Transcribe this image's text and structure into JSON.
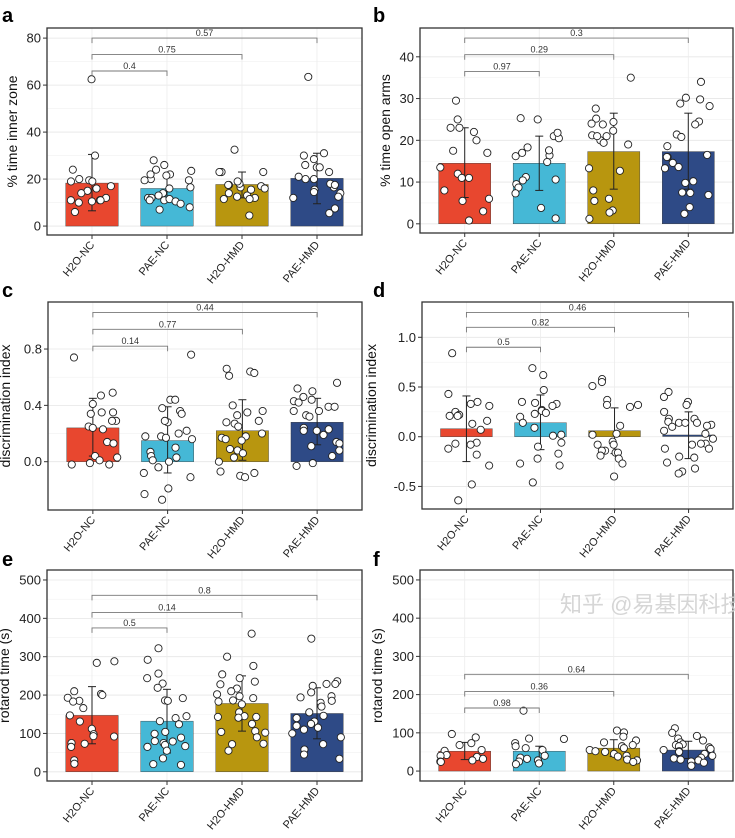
{
  "watermark": "知乎 @易基因科技",
  "categories": [
    "H2O-NC",
    "PAE-NC",
    "H2O-HMD",
    "PAE-HMD"
  ],
  "colors": {
    "H2O-NC": "#E8472F",
    "PAE-NC": "#45B8D6",
    "H2O-HMD": "#B8960F",
    "PAE-HMD": "#2E4A86"
  },
  "chart_data": [
    {
      "panel": "a",
      "type": "bar",
      "ylabel": "% time inner zone",
      "xlabel": "",
      "ylim": [
        -3.8,
        84.3
      ],
      "yticks": [
        0,
        20,
        40,
        60,
        80
      ],
      "ytick_labels": [
        "0",
        "20",
        "40",
        "60",
        "80"
      ],
      "grid": true,
      "means": [
        18.3,
        16,
        17.7,
        20.3
      ],
      "error_bars": [
        [
          6.5,
          30.5
        ],
        [
          11,
          21
        ],
        [
          12,
          23
        ],
        [
          9.5,
          31
        ]
      ],
      "points": [
        [
          62.5,
          30,
          24,
          20,
          19.5,
          19,
          19,
          17,
          16,
          15,
          14,
          12,
          11,
          11,
          10.5,
          10,
          11,
          6
        ],
        [
          22,
          21.5,
          20,
          19.5,
          19.5,
          16.5,
          12,
          11,
          8,
          12,
          14,
          11.5,
          10.5,
          24,
          22,
          23.5,
          26,
          28,
          16,
          13,
          11,
          9.5,
          7
        ],
        [
          32.5,
          23,
          23,
          17.5,
          17,
          16.5,
          14,
          13,
          12.5,
          12,
          11.5,
          11.5,
          17.5,
          18,
          23,
          23,
          19,
          15.5,
          4.5,
          16
        ],
        [
          63.5,
          28.5,
          25,
          20,
          16.5,
          15.5,
          14.5,
          26,
          30,
          23,
          21,
          20,
          18,
          17.5,
          14,
          12.5,
          7.5,
          5.5,
          31,
          25,
          12
        ]
      ],
      "comparisons": [
        {
          "groups": [
            "H2O-NC",
            "PAE-NC"
          ],
          "p": "0.4",
          "y": 66
        },
        {
          "groups": [
            "H2O-NC",
            "H2O-HMD"
          ],
          "p": "0.75",
          "y": 73
        },
        {
          "groups": [
            "H2O-NC",
            "PAE-HMD"
          ],
          "p": "0.57",
          "y": 80
        }
      ]
    },
    {
      "panel": "b",
      "type": "bar",
      "ylabel": "% time open arms",
      "xlabel": "",
      "ylim": [
        -2.2,
        46.9
      ],
      "yticks": [
        0,
        10,
        20,
        30,
        40
      ],
      "ytick_labels": [
        "0",
        "10",
        "20",
        "30",
        "40"
      ],
      "grid": true,
      "means": [
        14.5,
        14.5,
        17.3,
        17.3
      ],
      "error_bars": [
        [
          6.3,
          23
        ],
        [
          8,
          21
        ],
        [
          8.3,
          26.5
        ],
        [
          8.3,
          26.5
        ]
      ],
      "points": [
        [
          29.5,
          25,
          23,
          23,
          22,
          20,
          17.5,
          17,
          13.5,
          12,
          11,
          11,
          8,
          6,
          5.5,
          3,
          0.8
        ],
        [
          25,
          25.3,
          21,
          20.5,
          18.3,
          16.2,
          17,
          16.4,
          17.6,
          14.8,
          21.8,
          11.2,
          10.6,
          10.4,
          9.5,
          8.7,
          7.3,
          3.8,
          1.3
        ],
        [
          35,
          25.2,
          24.4,
          24,
          23.8,
          22.3,
          21.2,
          21,
          20,
          19.4,
          19,
          27.6,
          21,
          13.3,
          12.7,
          8,
          6,
          5.5,
          3.2,
          2.7,
          1.2
        ],
        [
          34,
          30.2,
          29.8,
          28.8,
          28.2,
          24.5,
          23.8,
          21.4,
          20.8,
          18.6,
          16.5,
          16,
          16,
          14.6,
          13.6,
          13.3,
          10.2,
          9.8,
          7.5,
          7.4,
          6.9,
          4,
          2.4
        ]
      ],
      "comparisons": [
        {
          "groups": [
            "H2O-NC",
            "PAE-NC"
          ],
          "p": "0.97",
          "y": 36.5
        },
        {
          "groups": [
            "H2O-NC",
            "H2O-HMD"
          ],
          "p": "0.29",
          "y": 40.5
        },
        {
          "groups": [
            "H2O-NC",
            "PAE-HMD"
          ],
          "p": "0.3",
          "y": 44.5
        }
      ]
    },
    {
      "panel": "c",
      "type": "bar",
      "ylabel": "discrimination index",
      "xlabel": "",
      "ylim": [
        -0.343,
        1.134
      ],
      "yticks": [
        0,
        0.4,
        0.8
      ],
      "ytick_labels": [
        "0.0",
        "0.4",
        "0.8"
      ],
      "grid": true,
      "means": [
        0.24,
        0.15,
        0.22,
        0.28
      ],
      "error_bars": [
        [
          0.04,
          0.45
        ],
        [
          -0.08,
          0.39
        ],
        [
          0.01,
          0.44
        ],
        [
          0.12,
          0.45
        ]
      ],
      "points": [
        [
          0.74,
          0.49,
          0.47,
          0.41,
          0.35,
          0.35,
          0.34,
          0.29,
          0.29,
          0.25,
          0.24,
          0.23,
          0.14,
          0.13,
          0.04,
          0.03,
          0.01,
          -0.02,
          -0.01,
          -0.02
        ],
        [
          0.76,
          0.44,
          0.44,
          0.38,
          0.36,
          0.34,
          0.28,
          0.29,
          0.22,
          0.2,
          0.18,
          0.18,
          0.17,
          0.16,
          0.1,
          0.07,
          0.03,
          0.04,
          0.01,
          0,
          -0.04,
          -0.08,
          -0.11,
          -0.19,
          -0.23,
          -0.27
        ],
        [
          0.66,
          0.64,
          0.61,
          0.63,
          0.4,
          0.36,
          0.35,
          0.33,
          0.29,
          0.28,
          0.27,
          0.25,
          0.2,
          0.18,
          0.17,
          0.16,
          0.15,
          0.09,
          0.08,
          0.06,
          0.03,
          0,
          -0.07,
          -0.08,
          -0.1,
          -0.11
        ],
        [
          0.56,
          0.52,
          0.5,
          0.46,
          0.44,
          0.43,
          0.42,
          0.39,
          0.39,
          0.36,
          0.36,
          0.33,
          0.32,
          0.24,
          0.23,
          0.22,
          0.22,
          0.19,
          0.14,
          0.13,
          0.11,
          0.08,
          0.04,
          -0.01,
          -0.03
        ]
      ],
      "comparisons": [
        {
          "groups": [
            "H2O-NC",
            "PAE-NC"
          ],
          "p": "0.14",
          "y": 0.82
        },
        {
          "groups": [
            "H2O-NC",
            "H2O-HMD"
          ],
          "p": "0.77",
          "y": 0.94
        },
        {
          "groups": [
            "H2O-NC",
            "PAE-HMD"
          ],
          "p": "0.44",
          "y": 1.06
        }
      ]
    },
    {
      "panel": "d",
      "type": "bar",
      "ylabel": "discrimination index",
      "xlabel": "",
      "ylim": [
        -0.727,
        1.355
      ],
      "yticks": [
        -0.5,
        0,
        0.5,
        1.0
      ],
      "ytick_labels": [
        "-0.5",
        "0.0",
        "0.5",
        "1.0"
      ],
      "grid": true,
      "means": [
        0.08,
        0.14,
        0.06,
        0.01
      ],
      "error_bars": [
        [
          -0.25,
          0.41
        ],
        [
          -0.13,
          0.42
        ],
        [
          -0.17,
          0.29
        ],
        [
          -0.22,
          0.25
        ]
      ],
      "points": [
        [
          0.84,
          0.43,
          0.35,
          0.33,
          0.31,
          0.25,
          0.22,
          0.21,
          0.21,
          0.16,
          0.13,
          0.07,
          -0.06,
          -0.07,
          -0.08,
          -0.12,
          -0.18,
          -0.29,
          -0.48,
          -0.64
        ],
        [
          0.69,
          0.62,
          0.47,
          0.35,
          0.34,
          0.33,
          0.31,
          0.27,
          0.26,
          0.24,
          0.23,
          0.2,
          0.14,
          0.09,
          0.02,
          0.01,
          -0.06,
          -0.1,
          -0.17,
          -0.22,
          -0.27,
          -0.29,
          -0.46
        ],
        [
          0.58,
          0.55,
          0.51,
          0.37,
          0.32,
          0.32,
          0.3,
          0.11,
          0.03,
          0.02,
          -0.05,
          -0.08,
          -0.08,
          -0.14,
          -0.14,
          -0.16,
          -0.16,
          -0.19,
          -0.22,
          -0.27,
          -0.4
        ],
        [
          0.45,
          0.4,
          0.35,
          0.32,
          0.25,
          0.18,
          0.18,
          0.15,
          0.14,
          0.14,
          0.14,
          0.12,
          0.11,
          0.1,
          0.06,
          0.03,
          -0.02,
          -0.07,
          -0.07,
          -0.08,
          -0.12,
          -0.12,
          -0.2,
          -0.21,
          -0.26,
          -0.32,
          -0.35,
          -0.37
        ]
      ],
      "comparisons": [
        {
          "groups": [
            "H2O-NC",
            "PAE-NC"
          ],
          "p": "0.5",
          "y": 0.9
        },
        {
          "groups": [
            "H2O-NC",
            "H2O-HMD"
          ],
          "p": "0.82",
          "y": 1.1
        },
        {
          "groups": [
            "H2O-NC",
            "PAE-HMD"
          ],
          "p": "0.46",
          "y": 1.25
        }
      ]
    },
    {
      "panel": "e",
      "type": "bar",
      "ylabel": "rotarod time (s)",
      "xlabel": "",
      "ylim": [
        -24,
        526
      ],
      "yticks": [
        0,
        100,
        200,
        300,
        400,
        500
      ],
      "ytick_labels": [
        "0",
        "100",
        "200",
        "300",
        "400",
        "500"
      ],
      "grid": true,
      "means": [
        147,
        132,
        178,
        152
      ],
      "error_bars": [
        [
          73,
          222
        ],
        [
          49,
          215
        ],
        [
          106,
          250
        ],
        [
          86,
          219
        ]
      ],
      "points": [
        [
          288,
          284,
          210,
          203,
          200,
          193,
          185,
          183,
          166,
          147,
          131,
          112,
          98,
          93,
          92,
          75,
          73,
          65,
          30,
          21
        ],
        [
          322,
          292,
          256,
          244,
          230,
          219,
          192,
          186,
          185,
          145,
          140,
          132,
          124,
          104,
          99,
          89,
          80,
          79,
          75,
          70,
          67,
          65,
          55,
          35,
          20,
          18
        ],
        [
          360,
          300,
          276,
          254,
          244,
          235,
          228,
          217,
          210,
          202,
          197,
          192,
          186,
          183,
          176,
          155,
          145,
          143,
          143,
          141,
          125,
          106,
          104,
          102,
          90,
          73,
          55,
          72
        ],
        [
          347,
          236,
          229,
          229,
          224,
          207,
          197,
          194,
          185,
          180,
          170,
          155,
          146,
          140,
          131,
          125,
          120,
          115,
          110,
          100,
          90,
          72,
          58,
          45,
          34
        ]
      ],
      "comparisons": [
        {
          "groups": [
            "H2O-NC",
            "PAE-NC"
          ],
          "p": "0.5",
          "y": 375
        },
        {
          "groups": [
            "H2O-NC",
            "H2O-HMD"
          ],
          "p": "0.14",
          "y": 415
        },
        {
          "groups": [
            "H2O-NC",
            "PAE-HMD"
          ],
          "p": "0.8",
          "y": 460
        }
      ]
    },
    {
      "panel": "f",
      "type": "bar",
      "ylabel": "rotarod time (s)",
      "xlabel": "",
      "ylim": [
        -26,
        526
      ],
      "yticks": [
        0,
        100,
        200,
        300,
        400,
        500
      ],
      "ytick_labels": [
        "0",
        "100",
        "200",
        "300",
        "400",
        "500"
      ],
      "grid": true,
      "means": [
        52,
        52,
        60,
        55
      ],
      "error_bars": [
        [
          30,
          75
        ],
        [
          20,
          65
        ],
        [
          38,
          82
        ],
        [
          33,
          78
        ]
      ],
      "points": [
        [
          97,
          88,
          73,
          68,
          55,
          53,
          42,
          40,
          37,
          32,
          28,
          25,
          24
        ],
        [
          158,
          85,
          84,
          73,
          65,
          60,
          55,
          40,
          35,
          32,
          28,
          25,
          20,
          18
        ],
        [
          106,
          101,
          90,
          80,
          75,
          68,
          65,
          60,
          55,
          52,
          50,
          45,
          40,
          38,
          30,
          28,
          24
        ],
        [
          112,
          100,
          92,
          85,
          80,
          75,
          70,
          68,
          65,
          62,
          58,
          55,
          52,
          50,
          45,
          40,
          35,
          33,
          30,
          28,
          25,
          22,
          14
        ]
      ],
      "comparisons": [
        {
          "groups": [
            "H2O-NC",
            "PAE-NC"
          ],
          "p": "0.98",
          "y": 165
        },
        {
          "groups": [
            "H2O-NC",
            "H2O-HMD"
          ],
          "p": "0.36",
          "y": 208
        },
        {
          "groups": [
            "H2O-NC",
            "PAE-HMD"
          ],
          "p": "0.64",
          "y": 253
        }
      ]
    }
  ]
}
